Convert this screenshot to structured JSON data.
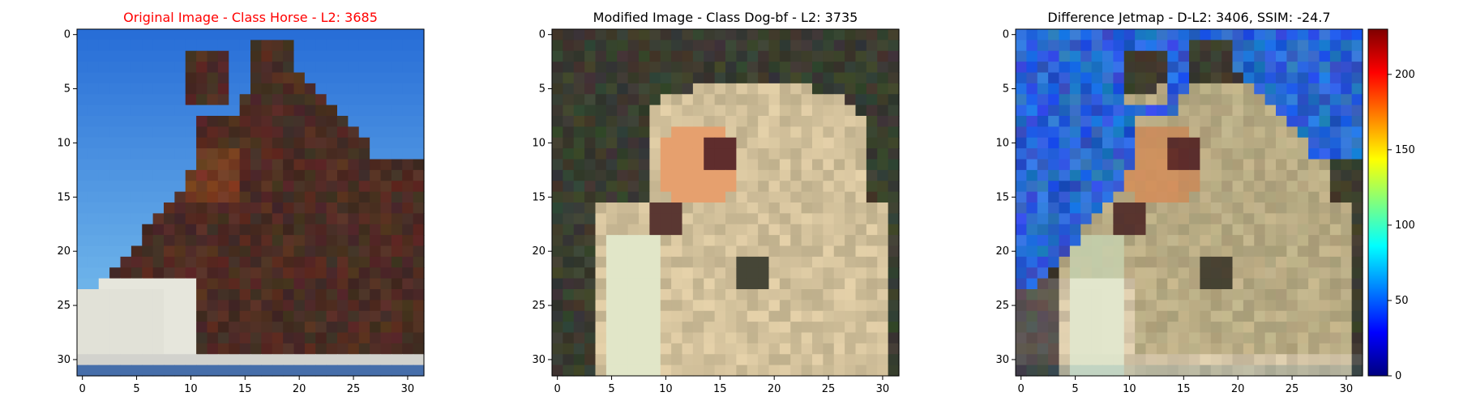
{
  "figure": {
    "panels": [
      {
        "title": "Original Image - Class Horse - L2: 3685",
        "title_color": "#ff0000"
      },
      {
        "title": "Modified Image - Class Dog-bf - L2: 3735",
        "title_color": "#000000"
      },
      {
        "title": "Difference Jetmap - D-L2: 3406, SSIM: -24.7",
        "title_color": "#000000"
      }
    ]
  },
  "chart_data": [
    {
      "type": "heatmap",
      "title": "Original Image - Class Horse - L2: 3685",
      "xlabel": "",
      "ylabel": "",
      "xlim": [
        -0.5,
        31.5
      ],
      "ylim": [
        31.5,
        -0.5
      ],
      "xticks": [
        0,
        5,
        10,
        15,
        20,
        25,
        30
      ],
      "yticks": [
        0,
        5,
        10,
        15,
        20,
        25,
        30
      ],
      "grid": false
    },
    {
      "type": "heatmap",
      "title": "Modified Image - Class Dog-bf - L2: 3735",
      "xlabel": "",
      "ylabel": "",
      "xlim": [
        -0.5,
        31.5
      ],
      "ylim": [
        31.5,
        -0.5
      ],
      "xticks": [
        0,
        5,
        10,
        15,
        20,
        25,
        30
      ],
      "yticks": [
        0,
        5,
        10,
        15,
        20,
        25,
        30
      ],
      "grid": false
    },
    {
      "type": "heatmap",
      "title": "Difference Jetmap - D-L2: 3406, SSIM: -24.7",
      "xlabel": "",
      "ylabel": "",
      "xlim": [
        -0.5,
        31.5
      ],
      "ylim": [
        31.5,
        -0.5
      ],
      "xticks": [
        0,
        5,
        10,
        15,
        20,
        25,
        30
      ],
      "yticks": [
        0,
        5,
        10,
        15,
        20,
        25,
        30
      ],
      "grid": false,
      "colorbar": {
        "colormap": "jet",
        "range": [
          0,
          230
        ],
        "ticks": [
          0,
          50,
          100,
          150,
          200
        ]
      }
    }
  ]
}
